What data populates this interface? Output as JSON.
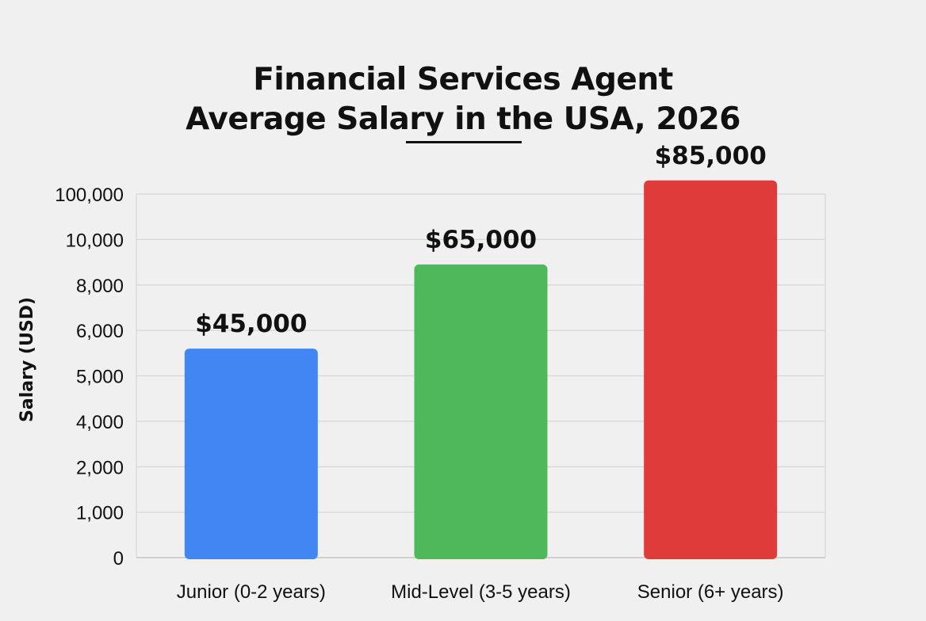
{
  "chart_data": {
    "type": "bar",
    "title_lines": [
      "Financial Services Agent",
      "Average Salary in the USA, 2026"
    ],
    "xlabel": "",
    "ylabel": "Salary (USD)",
    "y_tick_labels": [
      "0",
      "1,000",
      "2,000",
      "4,000",
      "5,000",
      "6,000",
      "8,000",
      "10,000",
      "100,000"
    ],
    "categories": [
      "Junior (0-2 years)",
      "Mid-Level (3-5 years)",
      "Senior (6+ years)"
    ],
    "values": [
      45000,
      65000,
      85000
    ],
    "value_labels": [
      "$45,000",
      "$65,000",
      "$85,000"
    ],
    "bar_tick_level": [
      4.6,
      6.45,
      8.3
    ],
    "colors": [
      "#4286f4",
      "#4fb85a",
      "#df3b3b"
    ],
    "grid": true,
    "legend": "none"
  }
}
